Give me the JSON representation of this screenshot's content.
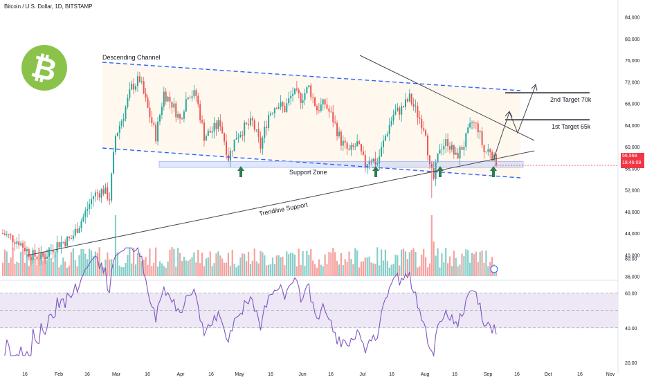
{
  "header": {
    "symbol_line": "Bitcoin / U.S. Dollar, 1D, BITSTAMP"
  },
  "last_price": {
    "value": "56,568",
    "countdown": "18:46:08"
  },
  "logo": {
    "icon": "bitcoin-logo-icon",
    "glyph": "₿",
    "color": "#8bc34a"
  },
  "colors": {
    "up": "#26a69a",
    "down": "#ef5350",
    "channel": "#2962ff",
    "rsi_line": "#7e57c2",
    "rsi_band": "#ede7f6",
    "price_tag": "#f23645"
  },
  "annotations": {
    "channel_label": "Descending Channel",
    "support_zone_label": "Support Zone",
    "trendline_label": "Trendline Support",
    "target1_label": "1st Target 65k",
    "target2_label": "2nd Target 70k"
  },
  "chart_data": [
    {
      "type": "candlestick",
      "title": "Bitcoin / U.S. Dollar, 1D, BITSTAMP",
      "y_ticks": [
        "84,000",
        "80,000",
        "76,000",
        "72,000",
        "68,000",
        "64,000",
        "60,000",
        "56,000",
        "52,000",
        "48,000",
        "44,000",
        "40,000",
        "36,000"
      ],
      "x_ticks": [
        "16",
        "Feb",
        "16",
        "Mar",
        "16",
        "Apr",
        "16",
        "May",
        "16",
        "Jun",
        "16",
        "Jul",
        "16",
        "Aug",
        "16",
        "Sep",
        "16",
        "Oct",
        "16",
        "Nov"
      ],
      "ylim": [
        35000,
        85000
      ],
      "key_levels": {
        "target_1": 65000,
        "target_2": 70000,
        "support_zone": [
          56200,
          57300
        ]
      },
      "last_close": 56568,
      "grid": false,
      "legend": "none"
    },
    {
      "type": "line",
      "title": "",
      "y_ticks": [
        "80.00",
        "60.00",
        "40.00",
        "20.00"
      ],
      "band": [
        40,
        60
      ],
      "midline": 50,
      "ylim": [
        20,
        90
      ]
    }
  ]
}
